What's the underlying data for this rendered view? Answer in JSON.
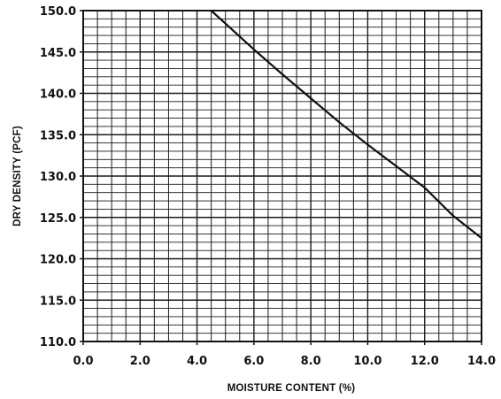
{
  "chart_data": {
    "type": "line",
    "xlabel": "MOISTURE CONTENT (%)",
    "ylabel": "DRY DENSITY (PCF)",
    "xlim": [
      0.0,
      14.0
    ],
    "ylim": [
      110.0,
      150.0
    ],
    "x_ticks": [
      "0.0",
      "2.0",
      "4.0",
      "6.0",
      "8.0",
      "10.0",
      "12.0",
      "14.0"
    ],
    "y_ticks": [
      "110.0",
      "115.0",
      "120.0",
      "125.0",
      "130.0",
      "135.0",
      "140.0",
      "145.0",
      "150.0"
    ],
    "grid": true,
    "series": [
      {
        "x": [
          4.5,
          6.0,
          7.0,
          8.0,
          9.0,
          10.0,
          11.0,
          12.0,
          13.0,
          14.0
        ],
        "y": [
          150.0,
          145.3,
          142.3,
          139.4,
          136.5,
          133.8,
          131.2,
          128.6,
          125.2,
          122.5
        ]
      }
    ],
    "colors": {
      "line": "#111111",
      "grid": "#1a1a1a",
      "frame": "#111111"
    }
  }
}
